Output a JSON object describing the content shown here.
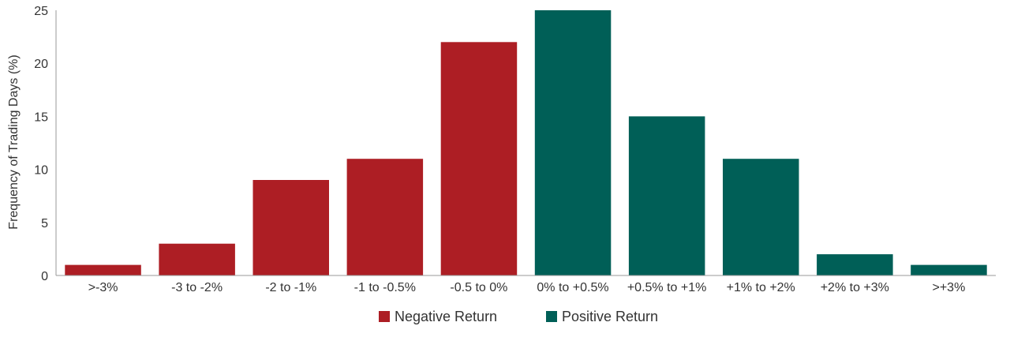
{
  "chart_data": {
    "type": "bar",
    "title": "",
    "xlabel": "",
    "ylabel": "Frequency of Trading Days (%)",
    "ylim": [
      0,
      25
    ],
    "yticks": [
      0,
      5,
      10,
      15,
      20,
      25
    ],
    "grid": false,
    "legend_position": "bottom-center",
    "categories": [
      ">-3%",
      "-3 to -2%",
      "-2 to -1%",
      "-1 to -0.5%",
      "-0.5 to 0%",
      "0% to +0.5%",
      "+0.5% to +1%",
      "+1% to +2%",
      "+2% to +3%",
      ">+3%"
    ],
    "series": [
      {
        "name": "Negative Return",
        "color": "#ad1e24",
        "values": [
          1,
          3,
          9,
          11,
          22,
          null,
          null,
          null,
          null,
          null
        ]
      },
      {
        "name": "Positive Return",
        "color": "#005f57",
        "values": [
          null,
          null,
          null,
          null,
          null,
          25,
          15,
          11,
          2,
          1
        ]
      }
    ]
  }
}
